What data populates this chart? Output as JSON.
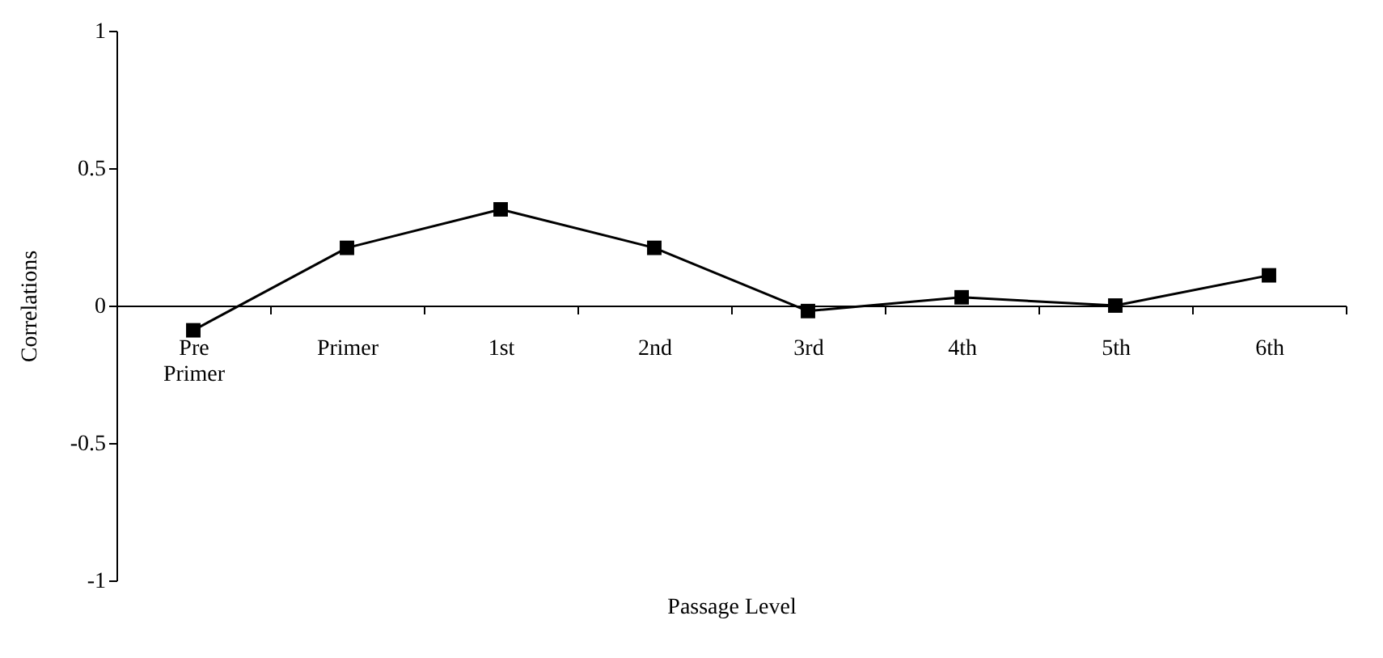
{
  "chart_data": {
    "type": "line",
    "xlabel": "Passage Level",
    "ylabel": "Correlations",
    "categories": [
      "Pre Primer",
      "Primer",
      "1st",
      "2nd",
      "3rd",
      "4th",
      "5th",
      "6th"
    ],
    "series": [
      {
        "color": "#000000",
        "values": [
          -0.09,
          0.21,
          0.35,
          0.21,
          -0.02,
          0.03,
          0.0,
          0.11
        ]
      }
    ],
    "ylim": [
      -1,
      1
    ],
    "yticks": [
      -1,
      -0.5,
      0,
      0.5,
      1
    ],
    "grid": false,
    "marker": "square",
    "line_style": "solid"
  }
}
